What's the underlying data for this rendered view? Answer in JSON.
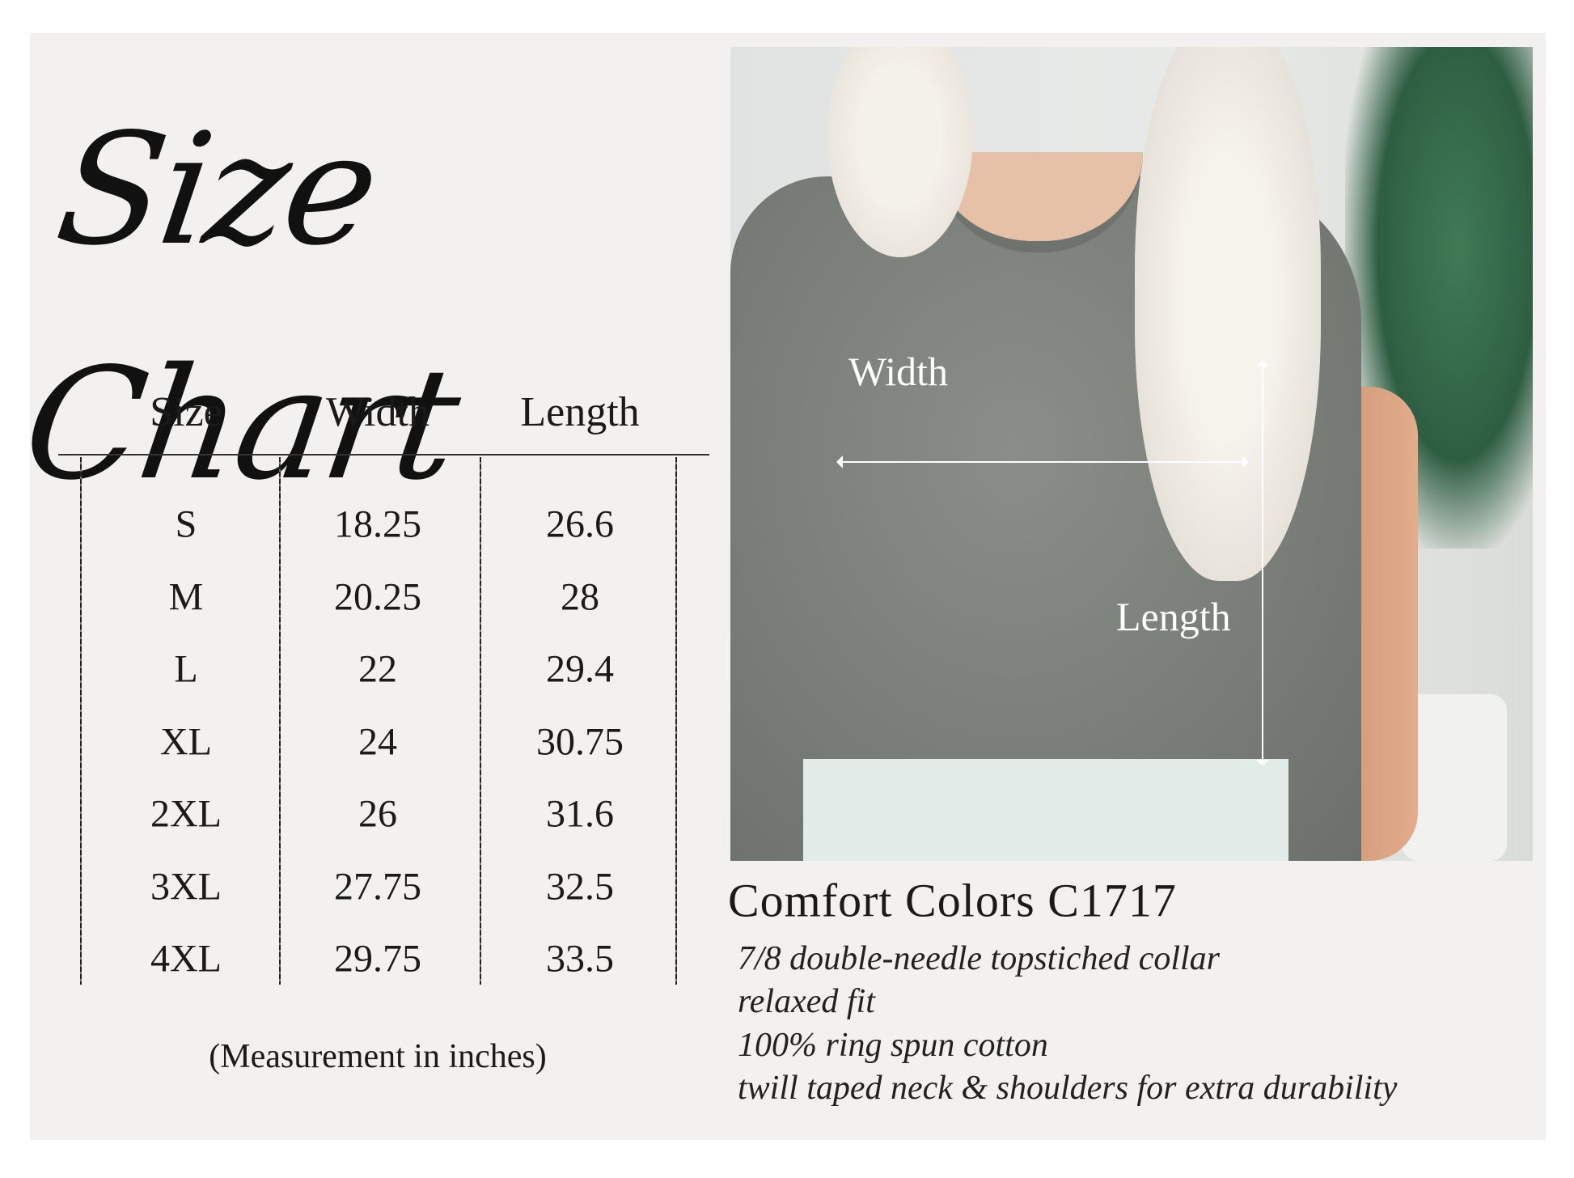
{
  "title": "Size Chart",
  "table": {
    "headers": [
      "Size",
      "Width",
      "Length"
    ],
    "rows": [
      [
        "S",
        "18.25",
        "26.6"
      ],
      [
        "M",
        "20.25",
        "28"
      ],
      [
        "L",
        "22",
        "29.4"
      ],
      [
        "XL",
        "24",
        "30.75"
      ],
      [
        "2XL",
        "26",
        "31.6"
      ],
      [
        "3XL",
        "27.75",
        "32.5"
      ],
      [
        "4XL",
        "29.75",
        "33.5"
      ]
    ],
    "note": "(Measurement in inches)"
  },
  "photo": {
    "width_label": "Width",
    "length_label": "Length"
  },
  "product": {
    "name": "Comfort Colors C1717",
    "features": [
      "7/8 double-needle topstiched collar",
      "relaxed fit",
      "100% ring spun cotton",
      "twill taped neck & shoulders for extra durability"
    ]
  }
}
